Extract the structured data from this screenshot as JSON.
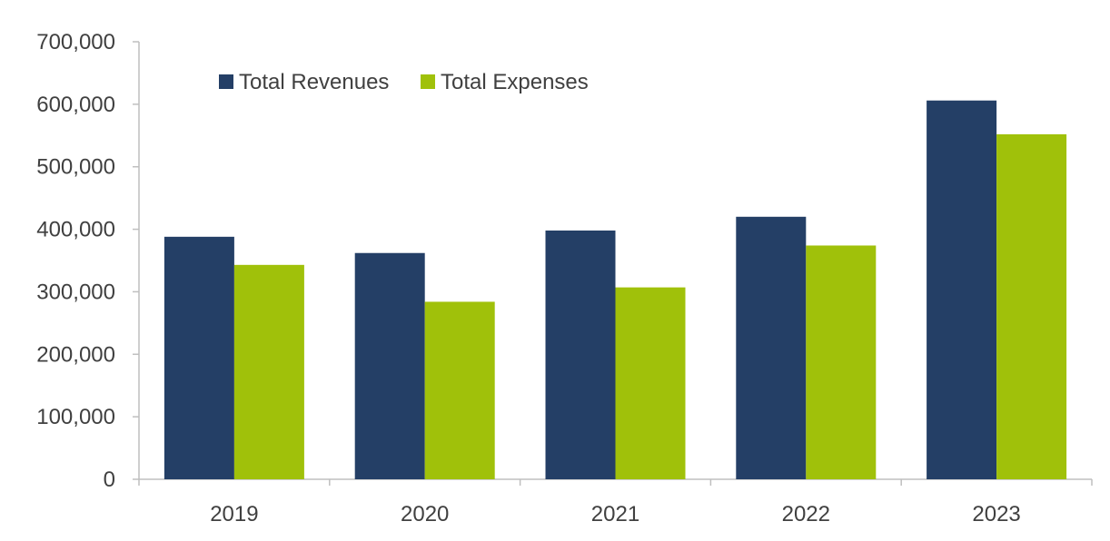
{
  "chart_data": {
    "type": "bar",
    "title": "",
    "xlabel": "",
    "ylabel": "",
    "ylim": [
      0,
      700000
    ],
    "yticks": [
      0,
      100000,
      200000,
      300000,
      400000,
      500000,
      600000,
      700000
    ],
    "ytick_labels": [
      "0",
      "100,000",
      "200,000",
      "300,000",
      "400,000",
      "500,000",
      "600,000",
      "700,000"
    ],
    "categories": [
      "2019",
      "2020",
      "2021",
      "2022",
      "2023"
    ],
    "grid": false,
    "legend_position": "top-left",
    "series": [
      {
        "name": "Total Revenues",
        "color": "#243F66",
        "values": [
          388000,
          362000,
          398000,
          420000,
          606000
        ]
      },
      {
        "name": "Total Expenses",
        "color": "#A0C10A",
        "values": [
          343000,
          284000,
          307000,
          374000,
          552000
        ]
      }
    ]
  }
}
